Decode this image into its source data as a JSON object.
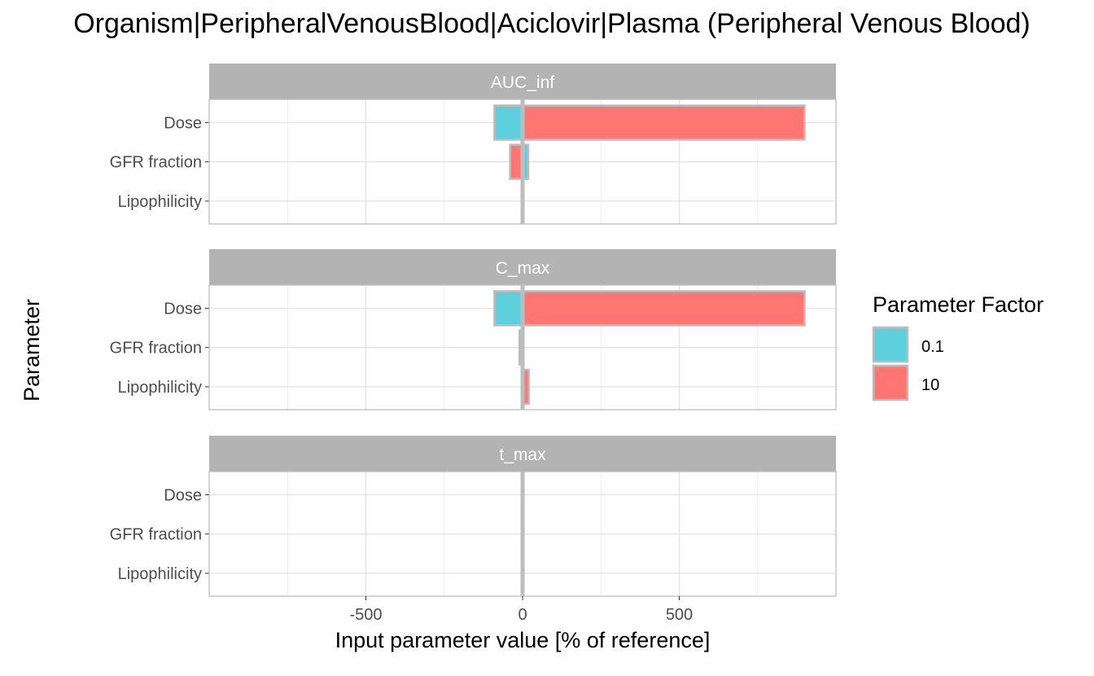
{
  "chart_data": {
    "type": "bar",
    "orientation": "horizontal",
    "title": "Organism|PeripheralVenousBlood|Aciclovir|Plasma (Peripheral Venous Blood)",
    "xlabel": "Input parameter value [% of reference]",
    "ylabel": "Parameter",
    "xlim": [
      -1000,
      1000
    ],
    "x_ticks": [
      -500,
      0,
      500
    ],
    "x_tick_labels": [
      "-500",
      "0",
      "500"
    ],
    "grid": true,
    "legend": {
      "title": "Parameter Factor",
      "placement": "right",
      "entries": [
        {
          "label": "0.1",
          "color": "#5ecfdc"
        },
        {
          "label": "10",
          "color": "#ff7673"
        }
      ]
    },
    "categories": [
      "Dose",
      "GFR fraction",
      "Lipophilicity"
    ],
    "panels": [
      {
        "name": "AUC_inf",
        "series": [
          {
            "name": "0.1",
            "values": [
              -90,
              18,
              0
            ]
          },
          {
            "name": "10",
            "values": [
              900,
              -40,
              0
            ]
          }
        ]
      },
      {
        "name": "C_max",
        "series": [
          {
            "name": "0.1",
            "values": [
              -90,
              -10,
              0
            ]
          },
          {
            "name": "10",
            "values": [
              900,
              0,
              20
            ]
          }
        ]
      },
      {
        "name": "t_max",
        "series": [
          {
            "name": "0.1",
            "values": [
              0,
              0,
              0
            ]
          },
          {
            "name": "10",
            "values": [
              0,
              0,
              0
            ]
          }
        ]
      }
    ]
  }
}
